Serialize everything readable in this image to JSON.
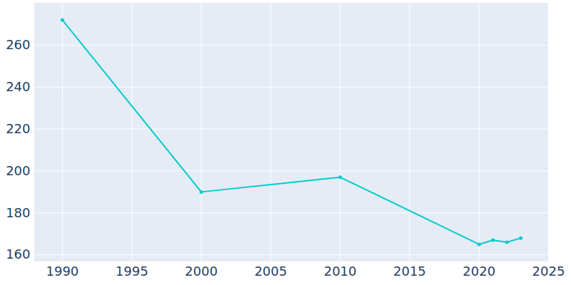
{
  "chart_data": {
    "type": "line",
    "x": [
      1990,
      2000,
      2010,
      2020,
      2021,
      2022,
      2023
    ],
    "values": [
      272,
      190,
      197,
      165,
      167,
      166,
      168
    ],
    "color": "#00cccc",
    "marker": "circle",
    "xlim": [
      1988,
      2025
    ],
    "ylim": [
      157,
      280
    ],
    "xticks": [
      1990,
      1995,
      2000,
      2005,
      2010,
      2015,
      2020,
      2025
    ],
    "yticks": [
      160,
      180,
      200,
      220,
      240,
      260
    ],
    "grid": true
  }
}
